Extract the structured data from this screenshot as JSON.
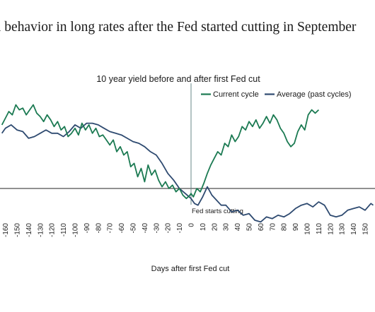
{
  "headline": "l behavior in long rates after the Fed started cutting in September",
  "chart_data": {
    "type": "line",
    "title": "10 year yield before and after first Fed cut",
    "xlabel": "Days after first Fed cut",
    "ylabel": "",
    "xlim": [
      -163,
      157
    ],
    "ylim": [
      -0.42,
      0.62
    ],
    "x_ticks": [
      -160,
      -150,
      -140,
      -130,
      -120,
      -110,
      -100,
      -90,
      -80,
      -70,
      -60,
      -50,
      -40,
      -30,
      -20,
      -10,
      0,
      10,
      20,
      30,
      40,
      50,
      60,
      70,
      80,
      90,
      100,
      110,
      120,
      130,
      140,
      150
    ],
    "annotations": [
      {
        "x": 0,
        "label": "Fed starts cutting"
      }
    ],
    "legend": "top-right",
    "series": [
      {
        "name": "Current cycle",
        "color": "#1b7a52",
        "x": [
          -163,
          -160,
          -157,
          -154,
          -151,
          -148,
          -145,
          -142,
          -139,
          -136,
          -133,
          -130,
          -127,
          -124,
          -121,
          -118,
          -115,
          -112,
          -109,
          -106,
          -103,
          -100,
          -97,
          -94,
          -91,
          -88,
          -85,
          -82,
          -79,
          -76,
          -73,
          -70,
          -67,
          -64,
          -61,
          -58,
          -55,
          -52,
          -49,
          -46,
          -43,
          -40,
          -37,
          -34,
          -31,
          -28,
          -25,
          -22,
          -19,
          -16,
          -13,
          -10,
          -7,
          -4,
          -1,
          0,
          2,
          5,
          8,
          11,
          14,
          17,
          20,
          23,
          26,
          29,
          32,
          35,
          38,
          41,
          44,
          47,
          50,
          53,
          56,
          59,
          62,
          65,
          68,
          71,
          74,
          77,
          80,
          83,
          86,
          89,
          92,
          95,
          98,
          101,
          104,
          107,
          110
        ],
        "values": [
          0.38,
          0.42,
          0.46,
          0.44,
          0.5,
          0.47,
          0.48,
          0.44,
          0.47,
          0.5,
          0.45,
          0.43,
          0.4,
          0.44,
          0.41,
          0.37,
          0.4,
          0.35,
          0.37,
          0.31,
          0.33,
          0.36,
          0.32,
          0.39,
          0.35,
          0.38,
          0.33,
          0.36,
          0.31,
          0.32,
          0.29,
          0.26,
          0.29,
          0.22,
          0.25,
          0.2,
          0.22,
          0.13,
          0.15,
          0.07,
          0.12,
          0.04,
          0.14,
          0.08,
          0.11,
          0.05,
          0.01,
          0.04,
          0.0,
          0.02,
          -0.02,
          0.0,
          -0.04,
          -0.06,
          -0.04,
          -0.03,
          -0.05,
          0.0,
          -0.02,
          0.03,
          0.09,
          0.14,
          0.18,
          0.22,
          0.2,
          0.27,
          0.25,
          0.32,
          0.28,
          0.31,
          0.37,
          0.35,
          0.4,
          0.37,
          0.41,
          0.36,
          0.39,
          0.43,
          0.39,
          0.44,
          0.41,
          0.36,
          0.33,
          0.28,
          0.25,
          0.27,
          0.34,
          0.38,
          0.35,
          0.44,
          0.47,
          0.45,
          0.47
        ]
      },
      {
        "name": "Average (past cycles)",
        "color": "#2e4a70",
        "x": [
          -163,
          -160,
          -155,
          -150,
          -145,
          -140,
          -135,
          -130,
          -125,
          -120,
          -115,
          -110,
          -105,
          -100,
          -95,
          -90,
          -85,
          -80,
          -75,
          -70,
          -65,
          -60,
          -55,
          -50,
          -45,
          -40,
          -35,
          -30,
          -25,
          -20,
          -15,
          -10,
          -5,
          0,
          3,
          6,
          10,
          14,
          18,
          22,
          26,
          30,
          35,
          40,
          45,
          50,
          55,
          60,
          65,
          70,
          75,
          80,
          85,
          90,
          95,
          100,
          105,
          110,
          115,
          120,
          125,
          130,
          135,
          140,
          145,
          150,
          155,
          157
        ],
        "values": [
          0.33,
          0.36,
          0.38,
          0.35,
          0.34,
          0.3,
          0.31,
          0.33,
          0.35,
          0.33,
          0.33,
          0.31,
          0.34,
          0.38,
          0.36,
          0.39,
          0.39,
          0.38,
          0.36,
          0.34,
          0.33,
          0.32,
          0.3,
          0.28,
          0.27,
          0.25,
          0.22,
          0.2,
          0.15,
          0.09,
          0.05,
          0.0,
          -0.03,
          -0.06,
          -0.09,
          -0.1,
          -0.05,
          0.01,
          -0.04,
          -0.07,
          -0.1,
          -0.1,
          -0.14,
          -0.13,
          -0.16,
          -0.15,
          -0.19,
          -0.2,
          -0.17,
          -0.18,
          -0.16,
          -0.17,
          -0.15,
          -0.12,
          -0.1,
          -0.09,
          -0.11,
          -0.08,
          -0.1,
          -0.16,
          -0.17,
          -0.16,
          -0.13,
          -0.12,
          -0.11,
          -0.13,
          -0.09,
          -0.1
        ]
      }
    ]
  }
}
